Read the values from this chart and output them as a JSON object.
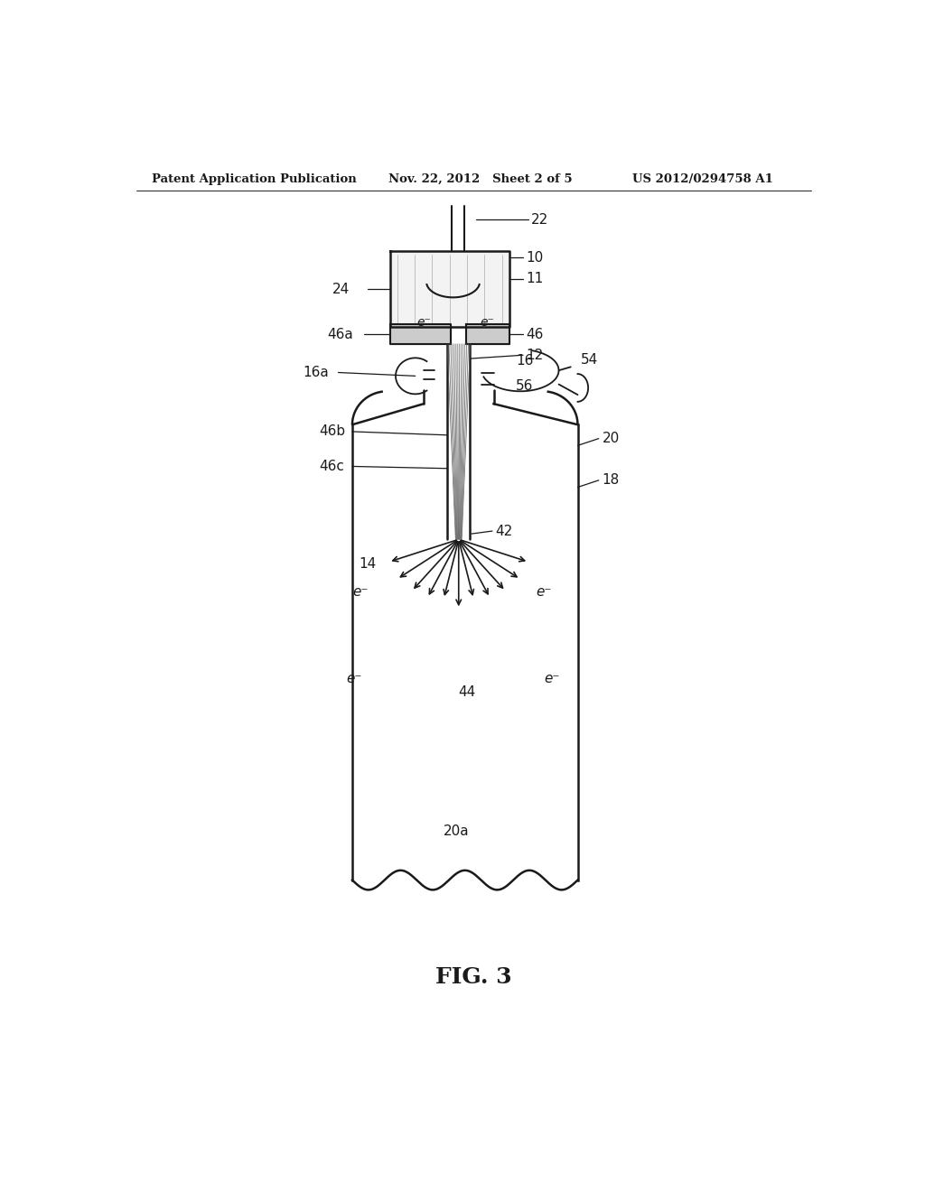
{
  "bg_color": "#ffffff",
  "line_color": "#1a1a1a",
  "text_color": "#1a1a1a",
  "header_left": "Patent Application Publication",
  "header_mid": "Nov. 22, 2012   Sheet 2 of 5",
  "header_right": "US 2012/0294758 A1",
  "fig_label": "FIG. 3"
}
